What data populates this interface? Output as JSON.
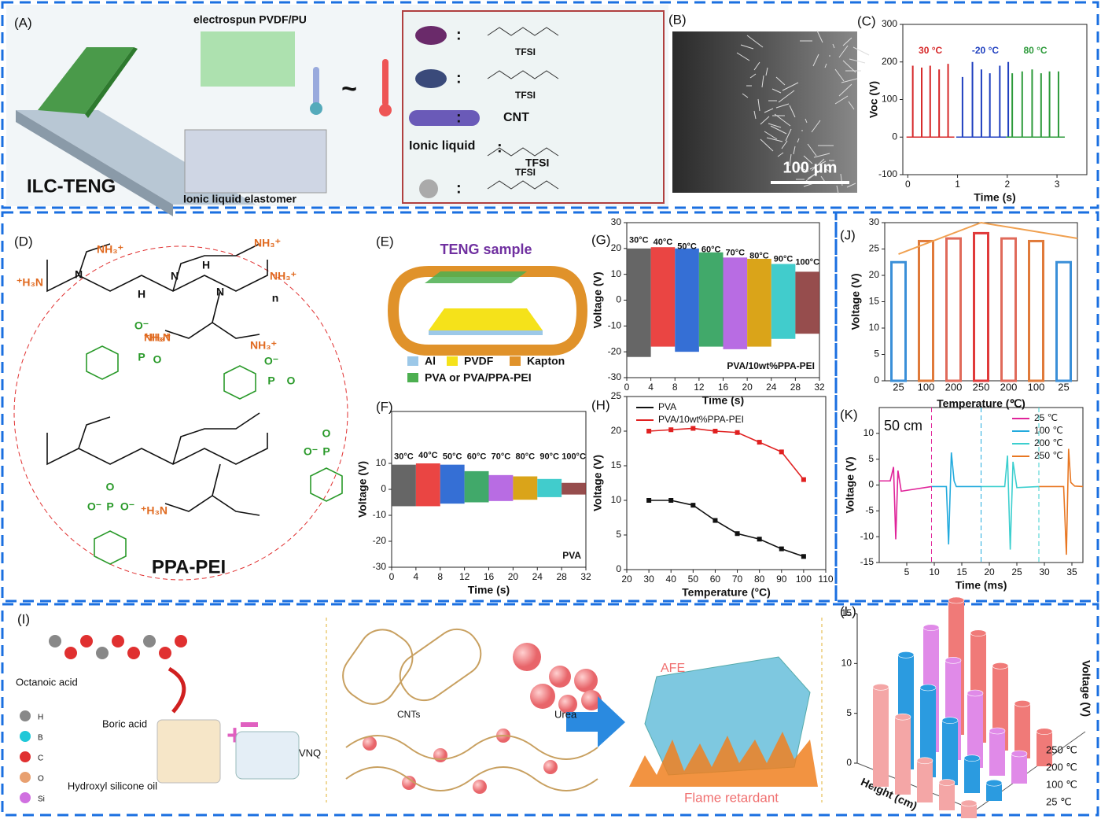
{
  "panels": {
    "a": {
      "label": "(A)",
      "fiber": "electrospun  PVDF/PU",
      "device": "ILC-TENG",
      "elastomer": "Ionic liquid elastomer",
      "colon": ":",
      "anion": "TFSI",
      "cnt": "CNT",
      "ionic": "Ionic liquid",
      "tilde": "~"
    },
    "b": {
      "label": "(B)",
      "scale": "100 μm"
    },
    "d": {
      "label": "(D)",
      "name": "PPA-PEI",
      "groups": [
        "NH₃⁺",
        "⁺H₃N",
        "N",
        "H",
        "n",
        "O⁻",
        "P",
        "O"
      ]
    },
    "e": {
      "label": "(E)",
      "title": "TENG sample",
      "legend": [
        "Al",
        "PVDF",
        "Kapton",
        "PVA or PVA/PPA-PEI"
      ]
    },
    "i": {
      "label": "(I)",
      "octanoic": "Octanoic acid",
      "boric": "Boric acid",
      "oil": "Hydroxyl silicone oil",
      "vnq": "VNQ",
      "cnts": "CNTs",
      "urea": "Urea",
      "afe": "AFE",
      "flame": "Flame retardant",
      "elements": [
        "H",
        "B",
        "C",
        "O",
        "Si"
      ],
      "plus": "+"
    }
  },
  "chart_data": [
    {
      "type": "spike",
      "label": "(C)",
      "xlabel": "Time (s)",
      "ylabel": "Voc (V)",
      "xlim": [
        -0.1,
        3.6
      ],
      "xticks": [
        0,
        1,
        2,
        3
      ],
      "ylim": [
        -100,
        300
      ],
      "yticks": [
        -100,
        0,
        100,
        200,
        300
      ],
      "series": [
        {
          "name": "30 °C",
          "color": "#d62728",
          "x": [
            0.1,
            0.28,
            0.45,
            0.63,
            0.81
          ],
          "values": [
            190,
            185,
            190,
            180,
            195
          ]
        },
        {
          "name": "-20 °C",
          "color": "#1f3fbf",
          "x": [
            1.1,
            1.3,
            1.48,
            1.65,
            1.85,
            2.02
          ],
          "values": [
            160,
            200,
            180,
            170,
            190,
            200
          ]
        },
        {
          "name": "80 °C",
          "color": "#2c9a3a",
          "x": [
            2.1,
            2.3,
            2.5,
            2.68,
            2.85,
            3.03
          ],
          "values": [
            170,
            175,
            180,
            170,
            175,
            175
          ]
        }
      ]
    },
    {
      "type": "area",
      "label": "(G)",
      "xlabel": "Time (s)",
      "ylabel": "Voltage (V)",
      "note": "PVA/10wt%PPA-PEI",
      "xlim": [
        0,
        32
      ],
      "xticks": [
        0,
        4,
        8,
        12,
        16,
        20,
        24,
        28,
        32
      ],
      "ylim": [
        -30,
        30
      ],
      "yticks": [
        -30,
        -20,
        -10,
        0,
        10,
        20,
        30
      ],
      "categories": [
        "30°C",
        "40°C",
        "50°C",
        "60°C",
        "70°C",
        "80°C",
        "90°C",
        "100°C"
      ],
      "x": [
        2,
        6,
        10,
        14,
        18,
        22,
        26,
        30
      ],
      "values": [
        20,
        20.5,
        20,
        18.5,
        16.5,
        16,
        14,
        11
      ],
      "lower": [
        -22,
        -18,
        -20,
        -18,
        -19,
        -18,
        -15,
        -13
      ],
      "colors": [
        "#555555",
        "#e8312f",
        "#1f5fd0",
        "#2ca05a",
        "#b05ce0",
        "#d69a00",
        "#2cc6c6",
        "#8b3a3a"
      ]
    },
    {
      "type": "area",
      "label": "(F)",
      "xlabel": "Time (s)",
      "ylabel": "Voltage (V)",
      "note": "PVA",
      "xlim": [
        0,
        32
      ],
      "xticks": [
        0,
        4,
        8,
        12,
        16,
        20,
        24,
        28,
        32
      ],
      "ylim": [
        -30,
        30
      ],
      "yticks": [
        -30,
        -20,
        -10,
        0,
        10
      ],
      "categories": [
        "30°C",
        "40°C",
        "50°C",
        "60°C",
        "70°C",
        "80°C",
        "90°C",
        "100°C"
      ],
      "x": [
        2,
        6,
        10,
        14,
        18,
        22,
        26,
        30
      ],
      "values": [
        9.5,
        10,
        9.5,
        7,
        5.5,
        5,
        4,
        2.5
      ],
      "lower": [
        -6.5,
        -6.5,
        -5.5,
        -5,
        -4.5,
        -4,
        -3,
        -2
      ],
      "colors": [
        "#555555",
        "#e8312f",
        "#1f5fd0",
        "#2ca05a",
        "#b05ce0",
        "#d69a00",
        "#2cc6c6",
        "#8b3a3a"
      ]
    },
    {
      "type": "line",
      "label": "(H)",
      "xlabel": "Temperature (°C)",
      "ylabel": "Voltage (V)",
      "legend": "upper left",
      "markers": true,
      "xlim": [
        20,
        110
      ],
      "xticks": [
        20,
        30,
        40,
        50,
        60,
        70,
        80,
        90,
        100,
        110
      ],
      "ylim": [
        0,
        25
      ],
      "yticks": [
        0,
        5,
        10,
        15,
        20,
        25
      ],
      "series": [
        {
          "name": "PVA",
          "color": "#111111",
          "x": [
            30,
            40,
            50,
            60,
            70,
            80,
            90,
            100
          ],
          "values": [
            10,
            10,
            9.3,
            7.1,
            5.2,
            4.4,
            3,
            1.9
          ]
        },
        {
          "name": "PVA/10wt%PPA-PEI",
          "color": "#e02020",
          "x": [
            30,
            40,
            50,
            60,
            70,
            80,
            90,
            100
          ],
          "values": [
            20,
            20.2,
            20.4,
            20,
            19.8,
            18.4,
            17,
            13
          ]
        }
      ]
    },
    {
      "type": "bar",
      "label": "(J)",
      "xlabel": "Temperature (℃)",
      "ylabel": "Voltage (V)",
      "ylim": [
        0,
        30
      ],
      "yticks": [
        0,
        5,
        10,
        15,
        20,
        25,
        30
      ],
      "categories": [
        "25",
        "100",
        "200",
        "250",
        "200",
        "100",
        "25"
      ],
      "values": [
        22.5,
        26.5,
        27,
        28,
        27,
        26.5,
        22.5
      ],
      "colors": [
        "#3a8fd8",
        "#e07a3a",
        "#e06a5a",
        "#e03a3a",
        "#e06a5a",
        "#e07a3a",
        "#3a8fd8"
      ]
    },
    {
      "type": "line",
      "label": "(K)",
      "xlabel": "Time (ms)",
      "ylabel": "Voltage (V)",
      "legend": "upper right",
      "markers": false,
      "annotation": "50 cm",
      "dividers": [
        9.5,
        18.5,
        29
      ],
      "xlim": [
        0,
        37
      ],
      "xticks": [
        5,
        10,
        15,
        20,
        25,
        30,
        35
      ],
      "ylim": [
        -15,
        15
      ],
      "yticks": [
        -15,
        -10,
        -5,
        0,
        5,
        10
      ],
      "series": [
        {
          "name": "25 ℃",
          "color": "#e0249a",
          "x": [
            0,
            2,
            2.6,
            3,
            3.4,
            4,
            9.5
          ],
          "values": [
            0.8,
            0.8,
            3.5,
            -10.5,
            2.8,
            -1.2,
            -0.3
          ]
        },
        {
          "name": "100 ℃",
          "color": "#22aadd",
          "x": [
            9.5,
            12.2,
            12.6,
            13.1,
            13.6,
            14,
            18.5
          ],
          "values": [
            -0.3,
            -0.3,
            -11.5,
            6.3,
            0.8,
            -0.3,
            -0.3
          ]
        },
        {
          "name": "200 ℃",
          "color": "#3ccfcf",
          "x": [
            18.5,
            22.8,
            23.3,
            23.8,
            24.3,
            25,
            29
          ],
          "values": [
            -0.3,
            -0.3,
            5.7,
            -12.5,
            4.5,
            -0.5,
            -0.3
          ]
        },
        {
          "name": "250 ℃",
          "color": "#e87722",
          "x": [
            29,
            33.5,
            34,
            34.4,
            34.8,
            35.5,
            37
          ],
          "values": [
            -0.3,
            -0.3,
            -13.5,
            7,
            0.5,
            -0.2,
            -0.3
          ]
        }
      ]
    },
    {
      "type": "bar3d",
      "label": "(L)",
      "xlabel": "Height (cm)",
      "ylabel": "Voltage (V)",
      "ylim": [
        0,
        15
      ],
      "yticks": [
        0,
        5,
        10,
        15
      ],
      "series": [
        {
          "name": "25 ℃",
          "color": "#f4a6a6",
          "values": [
            10,
            7.8,
            4.2,
            2.8,
            1.5
          ]
        },
        {
          "name": "100 ℃",
          "color": "#2b9be0",
          "values": [
            11.5,
            9,
            6.5,
            3.5,
            1.8
          ]
        },
        {
          "name": "200 ℃",
          "color": "#e08ae8",
          "values": [
            12.5,
            10,
            7.5,
            4.5,
            3
          ]
        },
        {
          "name": "250 ℃",
          "color": "#f07a78",
          "values": [
            13.5,
            11,
            8.5,
            5.5,
            3.5
          ]
        }
      ]
    }
  ]
}
